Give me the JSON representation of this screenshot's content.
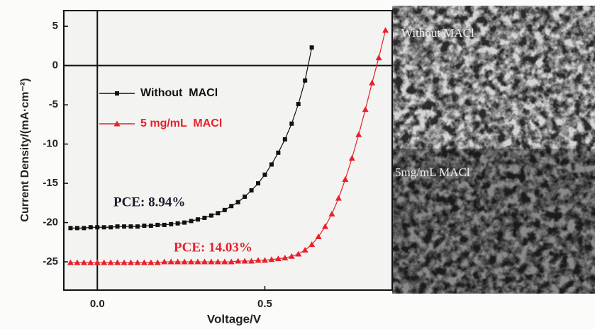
{
  "chart_data": {
    "type": "line",
    "x_label": "Voltage/V",
    "y_label": "Current Density/(mA·cm⁻²)",
    "xlim": [
      -0.1,
      0.88
    ],
    "xticks": [
      {
        "value": 0,
        "label": "0.0"
      },
      0.5
    ],
    "ylim": [
      -28.6,
      7
    ],
    "yticks": [
      5,
      0,
      -5,
      -10,
      -15,
      -20,
      -25
    ],
    "legend": "upper left",
    "series": [
      {
        "name": "Without  MACl",
        "color": "#111111",
        "marker": "square",
        "x": [
          -0.08,
          -0.06,
          -0.04,
          -0.02,
          0,
          0.02,
          0.04,
          0.06,
          0.08,
          0.1,
          0.12,
          0.14,
          0.16,
          0.18,
          0.2,
          0.22,
          0.24,
          0.26,
          0.28,
          0.3,
          0.32,
          0.34,
          0.36,
          0.38,
          0.4,
          0.42,
          0.44,
          0.46,
          0.48,
          0.5,
          0.52,
          0.54,
          0.56,
          0.58,
          0.6,
          0.62,
          0.64
        ],
        "values": [
          -20.7,
          -20.7,
          -20.7,
          -20.6,
          -20.6,
          -20.6,
          -20.6,
          -20.5,
          -20.5,
          -20.5,
          -20.5,
          -20.4,
          -20.4,
          -20.3,
          -20.3,
          -20.2,
          -20.1,
          -20.0,
          -19.8,
          -19.6,
          -19.4,
          -19.1,
          -18.8,
          -18.4,
          -17.9,
          -17.4,
          -16.7,
          -15.9,
          -15.0,
          -13.9,
          -12.6,
          -11.1,
          -9.4,
          -7.4,
          -4.9,
          -1.9,
          2.3
        ]
      },
      {
        "name": "5 mg/mL  MACl",
        "color": "#e8202a",
        "marker": "triangle",
        "x": [
          -0.08,
          -0.06,
          -0.04,
          -0.02,
          0,
          0.02,
          0.04,
          0.06,
          0.08,
          0.1,
          0.12,
          0.14,
          0.16,
          0.18,
          0.2,
          0.22,
          0.24,
          0.26,
          0.28,
          0.3,
          0.32,
          0.34,
          0.36,
          0.38,
          0.4,
          0.42,
          0.44,
          0.46,
          0.48,
          0.5,
          0.52,
          0.54,
          0.56,
          0.58,
          0.6,
          0.62,
          0.64,
          0.66,
          0.68,
          0.7,
          0.72,
          0.74,
          0.76,
          0.78,
          0.8,
          0.82,
          0.84,
          0.86
        ],
        "values": [
          -25.1,
          -25.1,
          -25.1,
          -25.1,
          -25.1,
          -25.1,
          -25.1,
          -25.1,
          -25.1,
          -25.1,
          -25.1,
          -25.1,
          -25.1,
          -25.1,
          -25.0,
          -25.0,
          -25.0,
          -25.0,
          -25.0,
          -25.0,
          -25.0,
          -25.0,
          -25.0,
          -25.0,
          -25.0,
          -24.9,
          -24.9,
          -24.9,
          -24.8,
          -24.8,
          -24.7,
          -24.6,
          -24.5,
          -24.3,
          -24.0,
          -23.5,
          -22.8,
          -21.8,
          -20.5,
          -18.9,
          -16.9,
          -14.5,
          -11.8,
          -8.8,
          -5.6,
          -2.2,
          1.0,
          4.5
        ]
      }
    ],
    "annotations": [
      {
        "text": "PCE: 8.94%",
        "color": "#1a1a2a"
      },
      {
        "text": "PCE: 14.03%",
        "color": "#e8202a"
      }
    ]
  },
  "images": {
    "labels": [
      "Without MACl",
      "5mg/mL MACl"
    ]
  }
}
